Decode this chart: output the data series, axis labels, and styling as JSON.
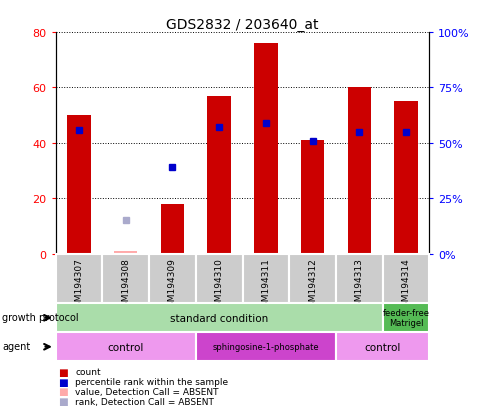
{
  "title": "GDS2832 / 203640_at",
  "samples": [
    "GSM194307",
    "GSM194308",
    "GSM194309",
    "GSM194310",
    "GSM194311",
    "GSM194312",
    "GSM194313",
    "GSM194314"
  ],
  "counts": [
    50,
    null,
    18,
    57,
    76,
    41,
    60,
    55
  ],
  "counts_absent": [
    null,
    1,
    null,
    null,
    null,
    null,
    null,
    null
  ],
  "ranks": [
    56,
    null,
    39,
    57,
    59,
    51,
    55,
    55
  ],
  "ranks_absent": [
    null,
    15,
    null,
    null,
    null,
    null,
    null,
    null
  ],
  "ylim_left": [
    0,
    80
  ],
  "ylim_right": [
    0,
    100
  ],
  "yticks_left": [
    0,
    20,
    40,
    60,
    80
  ],
  "yticks_right": [
    0,
    25,
    50,
    75,
    100
  ],
  "bar_color": "#cc0000",
  "bar_absent_color": "#ffaaaa",
  "rank_color": "#0000cc",
  "rank_absent_color": "#aaaacc",
  "xticklabel_bg": "#cccccc",
  "growth_std_color": "#aaddaa",
  "growth_ff_color": "#55bb55",
  "agent_ctrl_color": "#ee99ee",
  "agent_sphingo_color": "#cc44cc",
  "legend_items": [
    {
      "label": "count",
      "color": "#cc0000"
    },
    {
      "label": "percentile rank within the sample",
      "color": "#0000cc"
    },
    {
      "label": "value, Detection Call = ABSENT",
      "color": "#ffaaaa"
    },
    {
      "label": "rank, Detection Call = ABSENT",
      "color": "#aaaacc"
    }
  ],
  "bar_width": 0.5,
  "rank_marker_size": 5
}
